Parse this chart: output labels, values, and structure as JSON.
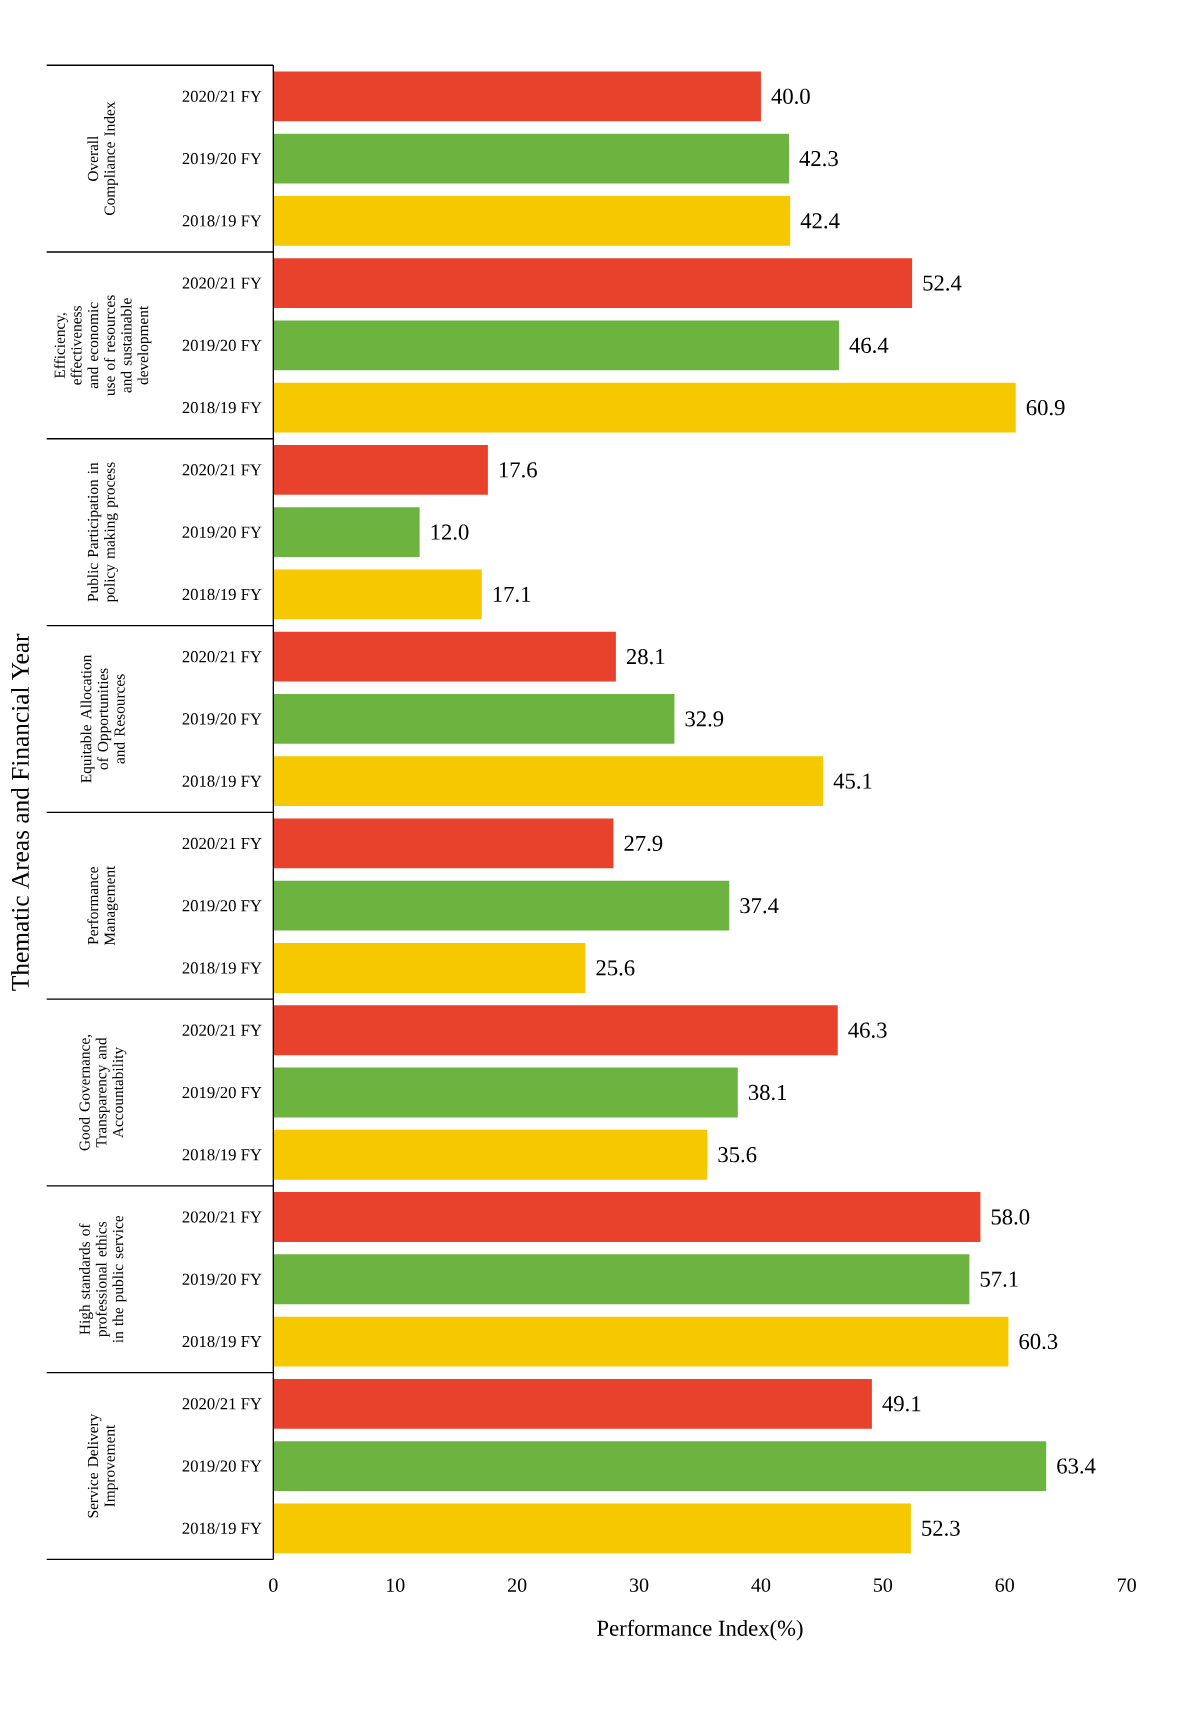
{
  "chart_data": {
    "type": "bar",
    "orientation": "horizontal",
    "xlabel": "Performance Index(%)",
    "ylabel": "Thematic Areas and Financial Year",
    "categories": [
      "Overall Compliance Index",
      "Efficiency, effectiveness and economic use of resources and sustainable development",
      "Public Participation in policy making process",
      "Equitable Allocation of Opportunities and Resources",
      "Performance Management",
      "Good Governance, Transparency and Accountability",
      "High standards of professional ethics in the public service",
      "Service Delivery Improvement"
    ],
    "series": [
      {
        "name": "2020/21 FY",
        "color": "#e8412c",
        "values": [
          40.0,
          52.4,
          17.6,
          28.1,
          27.9,
          46.3,
          58.0,
          49.1
        ],
        "value_labels": [
          "40.0",
          "52.4",
          "17.6",
          "28.1",
          "27.9",
          "46.3",
          "58.0",
          "49.1"
        ]
      },
      {
        "name": "2019/20 FY",
        "color": "#6cb33f",
        "values": [
          42.3,
          46.4,
          12.0,
          32.9,
          37.4,
          38.1,
          57.1,
          63.4
        ],
        "value_labels": [
          "42.3",
          "46.4",
          "12.0",
          "32.9",
          "37.4",
          "38.1",
          "57.1",
          "63.4"
        ]
      },
      {
        "name": "2018/19 FY",
        "color": "#f5c800",
        "values": [
          42.4,
          60.9,
          17.1,
          45.1,
          25.6,
          35.6,
          60.3,
          52.3
        ],
        "value_labels": [
          "42.4",
          "60.9",
          "17.1",
          "45.1",
          "25.6",
          "35.6",
          "60.3",
          "52.3"
        ]
      }
    ],
    "xlim": [
      0,
      70
    ],
    "xticks": [
      0,
      10,
      20,
      30,
      40,
      50,
      60,
      70
    ],
    "grid": false
  }
}
